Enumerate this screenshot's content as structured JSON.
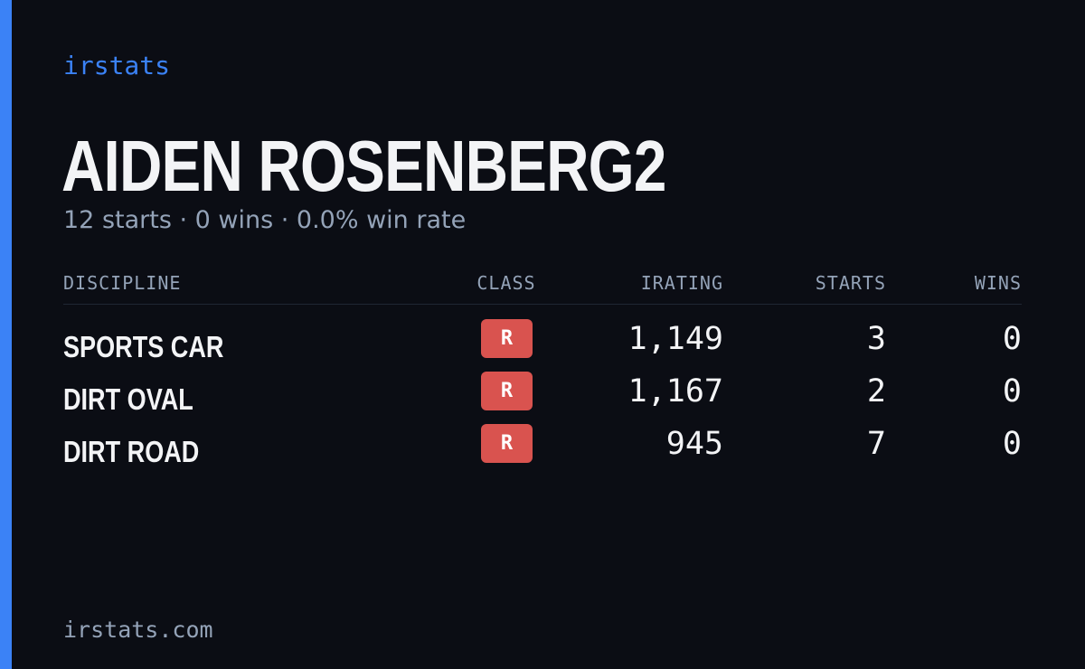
{
  "brand": "irstats",
  "driver": {
    "name": "AIDEN ROSENBERG2",
    "summary": "12 starts · 0 wins · 0.0% win rate"
  },
  "table": {
    "headers": {
      "discipline": "DISCIPLINE",
      "class": "CLASS",
      "irating": "IRATING",
      "starts": "STARTS",
      "wins": "WINS"
    },
    "rows": [
      {
        "discipline": "SPORTS CAR",
        "class": "R",
        "irating": "1,149",
        "starts": "3",
        "wins": "0"
      },
      {
        "discipline": "DIRT OVAL",
        "class": "R",
        "irating": "1,167",
        "starts": "2",
        "wins": "0"
      },
      {
        "discipline": "DIRT ROAD",
        "class": "R",
        "irating": "945",
        "starts": "7",
        "wins": "0"
      }
    ]
  },
  "footer": "irstats.com",
  "colors": {
    "accent": "#3b82f6",
    "background": "#0b0d14",
    "class_badge": "#d9534f",
    "muted_text": "#94a3b8",
    "primary_text": "#f3f4f6"
  }
}
